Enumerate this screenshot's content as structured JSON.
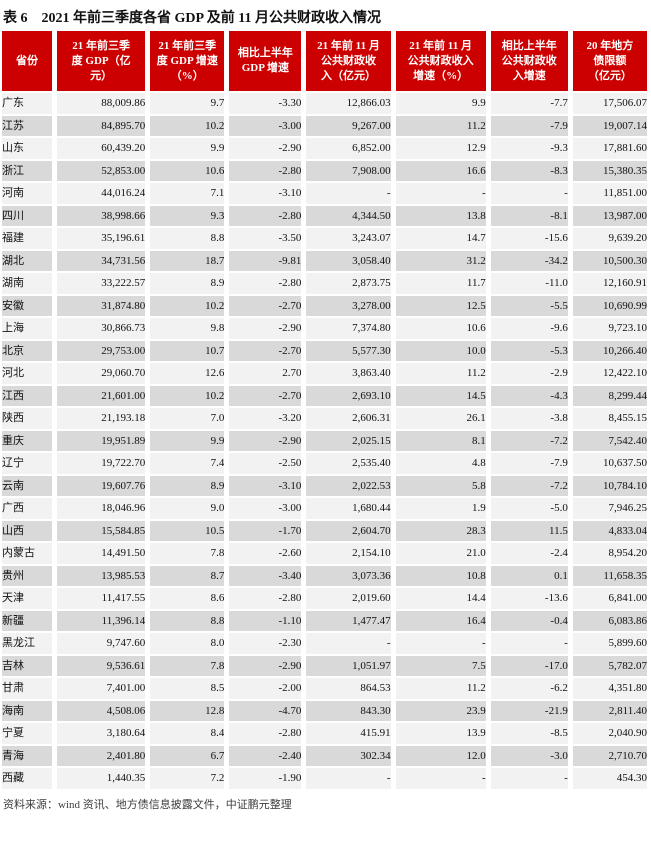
{
  "title": {
    "tag": "表 6",
    "text": "2021 年前三季度各省 GDP 及前 11 月公共财政收入情况"
  },
  "colors": {
    "header_bg": "#CC0000",
    "header_text": "#FFFFFF",
    "row_light": "#F2F2F2",
    "row_dark": "#D9D9D9"
  },
  "table": {
    "columns": [
      "省份",
      "21 年前三季\n度 GDP（亿\n元）",
      "21 年前三季\n度 GDP 增速\n（%）",
      "相比上半年\nGDP 增速",
      "21 年前 11 月\n公共财政收\n入（亿元）",
      "21 年前 11 月\n公共财政收入\n增速（%）",
      "相比上半年\n公共财政收\n入增速",
      "20 年地方\n债限额\n（亿元）"
    ],
    "rows": [
      {
        "province": "广东",
        "values": [
          "88,009.86",
          "9.7",
          "-3.30",
          "12,866.03",
          "9.9",
          "-7.7",
          "17,506.07"
        ]
      },
      {
        "province": "江苏",
        "values": [
          "84,895.70",
          "10.2",
          "-3.00",
          "9,267.00",
          "11.2",
          "-7.9",
          "19,007.14"
        ]
      },
      {
        "province": "山东",
        "values": [
          "60,439.20",
          "9.9",
          "-2.90",
          "6,852.00",
          "12.9",
          "-9.3",
          "17,881.60"
        ]
      },
      {
        "province": "浙江",
        "values": [
          "52,853.00",
          "10.6",
          "-2.80",
          "7,908.00",
          "16.6",
          "-8.3",
          "15,380.35"
        ]
      },
      {
        "province": "河南",
        "values": [
          "44,016.24",
          "7.1",
          "-3.10",
          "-",
          "-",
          "-",
          "11,851.00"
        ]
      },
      {
        "province": "四川",
        "values": [
          "38,998.66",
          "9.3",
          "-2.80",
          "4,344.50",
          "13.8",
          "-8.1",
          "13,987.00"
        ]
      },
      {
        "province": "福建",
        "values": [
          "35,196.61",
          "8.8",
          "-3.50",
          "3,243.07",
          "14.7",
          "-15.6",
          "9,639.20"
        ]
      },
      {
        "province": "湖北",
        "values": [
          "34,731.56",
          "18.7",
          "-9.81",
          "3,058.40",
          "31.2",
          "-34.2",
          "10,500.30"
        ]
      },
      {
        "province": "湖南",
        "values": [
          "33,222.57",
          "8.9",
          "-2.80",
          "2,873.75",
          "11.7",
          "-11.0",
          "12,160.91"
        ]
      },
      {
        "province": "安徽",
        "values": [
          "31,874.80",
          "10.2",
          "-2.70",
          "3,278.00",
          "12.5",
          "-5.5",
          "10,690.99"
        ]
      },
      {
        "province": "上海",
        "values": [
          "30,866.73",
          "9.8",
          "-2.90",
          "7,374.80",
          "10.6",
          "-9.6",
          "9,723.10"
        ]
      },
      {
        "province": "北京",
        "values": [
          "29,753.00",
          "10.7",
          "-2.70",
          "5,577.30",
          "10.0",
          "-5.3",
          "10,266.40"
        ]
      },
      {
        "province": "河北",
        "values": [
          "29,060.70",
          "12.6",
          "2.70",
          "3,863.40",
          "11.2",
          "-2.9",
          "12,422.10"
        ]
      },
      {
        "province": "江西",
        "values": [
          "21,601.00",
          "10.2",
          "-2.70",
          "2,693.10",
          "14.5",
          "-4.3",
          "8,299.44"
        ]
      },
      {
        "province": "陕西",
        "values": [
          "21,193.18",
          "7.0",
          "-3.20",
          "2,606.31",
          "26.1",
          "-3.8",
          "8,455.15"
        ]
      },
      {
        "province": "重庆",
        "values": [
          "19,951.89",
          "9.9",
          "-2.90",
          "2,025.15",
          "8.1",
          "-7.2",
          "7,542.40"
        ]
      },
      {
        "province": "辽宁",
        "values": [
          "19,722.70",
          "7.4",
          "-2.50",
          "2,535.40",
          "4.8",
          "-7.9",
          "10,637.50"
        ]
      },
      {
        "province": "云南",
        "values": [
          "19,607.76",
          "8.9",
          "-3.10",
          "2,022.53",
          "5.8",
          "-7.2",
          "10,784.10"
        ]
      },
      {
        "province": "广西",
        "values": [
          "18,046.96",
          "9.0",
          "-3.00",
          "1,680.44",
          "1.9",
          "-5.0",
          "7,946.25"
        ]
      },
      {
        "province": "山西",
        "values": [
          "15,584.85",
          "10.5",
          "-1.70",
          "2,604.70",
          "28.3",
          "11.5",
          "4,833.04"
        ]
      },
      {
        "province": "内蒙古",
        "values": [
          "14,491.50",
          "7.8",
          "-2.60",
          "2,154.10",
          "21.0",
          "-2.4",
          "8,954.20"
        ]
      },
      {
        "province": "贵州",
        "values": [
          "13,985.53",
          "8.7",
          "-3.40",
          "3,073.36",
          "10.8",
          "0.1",
          "11,658.35"
        ]
      },
      {
        "province": "天津",
        "values": [
          "11,417.55",
          "8.6",
          "-2.80",
          "2,019.60",
          "14.4",
          "-13.6",
          "6,841.00"
        ]
      },
      {
        "province": "新疆",
        "values": [
          "11,396.14",
          "8.8",
          "-1.10",
          "1,477.47",
          "16.4",
          "-0.4",
          "6,083.86"
        ]
      },
      {
        "province": "黑龙江",
        "values": [
          "9,747.60",
          "8.0",
          "-2.30",
          "-",
          "-",
          "-",
          "5,899.60"
        ]
      },
      {
        "province": "吉林",
        "values": [
          "9,536.61",
          "7.8",
          "-2.90",
          "1,051.97",
          "7.5",
          "-17.0",
          "5,782.07"
        ]
      },
      {
        "province": "甘肃",
        "values": [
          "7,401.00",
          "8.5",
          "-2.00",
          "864.53",
          "11.2",
          "-6.2",
          "4,351.80"
        ]
      },
      {
        "province": "海南",
        "values": [
          "4,508.06",
          "12.8",
          "-4.70",
          "843.30",
          "23.9",
          "-21.9",
          "2,811.40"
        ]
      },
      {
        "province": "宁夏",
        "values": [
          "3,180.64",
          "8.4",
          "-2.80",
          "415.91",
          "13.9",
          "-8.5",
          "2,040.90"
        ]
      },
      {
        "province": "青海",
        "values": [
          "2,401.80",
          "6.7",
          "-2.40",
          "302.34",
          "12.0",
          "-3.0",
          "2,710.70"
        ]
      },
      {
        "province": "西藏",
        "values": [
          "1,440.35",
          "7.2",
          "-1.90",
          "-",
          "-",
          "-",
          "454.30"
        ]
      }
    ]
  },
  "footer": {
    "source": "资料来源：wind 资讯、地方债信息披露文件，中证鹏元整理"
  }
}
